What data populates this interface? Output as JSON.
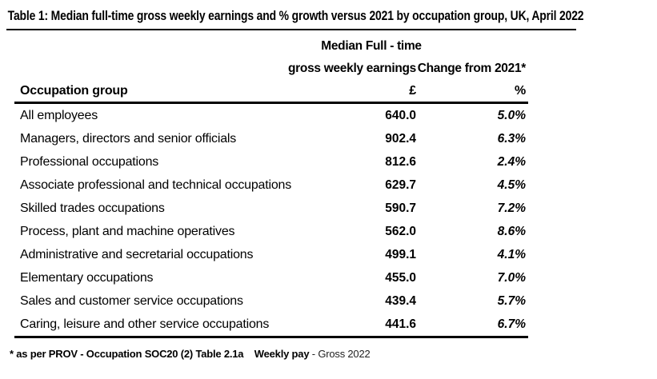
{
  "title": "Table 1: Median full-time gross weekly earnings and % growth versus 2021 by occupation group, UK, April 2022",
  "header": {
    "median_line1": "Median Full - time",
    "median_line2": "gross weekly earnings",
    "change_label": "Change from 2021*",
    "occupation_label": "Occupation group",
    "pounds_unit": "£",
    "percent_unit": "%"
  },
  "rows": [
    {
      "occupation": "All employees",
      "earnings": "640.0",
      "change": "5.0%"
    },
    {
      "occupation": "Managers, directors and senior officials",
      "earnings": "902.4",
      "change": "6.3%"
    },
    {
      "occupation": "Professional occupations",
      "earnings": "812.6",
      "change": "2.4%"
    },
    {
      "occupation": "Associate professional and technical occupations",
      "earnings": "629.7",
      "change": "4.5%"
    },
    {
      "occupation": "Skilled trades occupations",
      "earnings": "590.7",
      "change": "7.2%"
    },
    {
      "occupation": "Process, plant and machine operatives",
      "earnings": "562.0",
      "change": "8.6%"
    },
    {
      "occupation": "Administrative and secretarial occupations",
      "earnings": "499.1",
      "change": "4.1%"
    },
    {
      "occupation": "Elementary occupations",
      "earnings": "455.0",
      "change": "7.0%"
    },
    {
      "occupation": "Sales and customer service occupations",
      "earnings": "439.4",
      "change": "5.7%"
    },
    {
      "occupation": "Caring, leisure and other service occupations",
      "earnings": "441.6",
      "change": "6.7%"
    }
  ],
  "footnote": {
    "source_text": "* as per PROV - Occupation SOC20 (2) Table 2.1a",
    "measure_text": "Weekly pay",
    "suffix_text": "- Gross 2022"
  },
  "colors": {
    "text": "#000000",
    "background": "#ffffff"
  }
}
